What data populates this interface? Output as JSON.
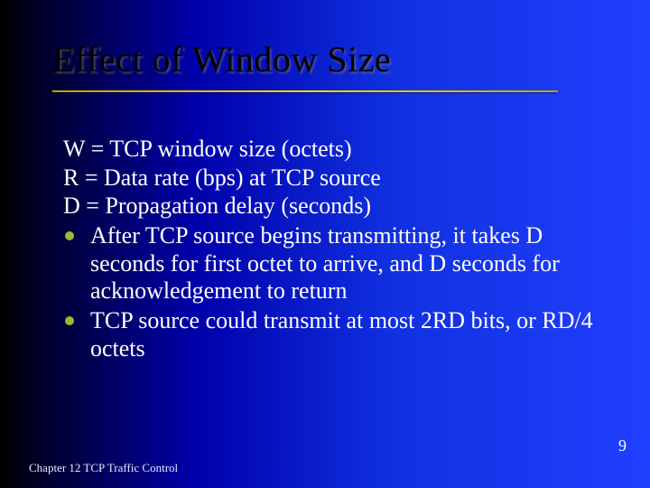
{
  "slide": {
    "title": "Effect of Window Size",
    "title_color": "#000000",
    "underline_color": "#ffd700",
    "background_gradient": [
      "#000000",
      "#000033",
      "#0000aa",
      "#1030e0",
      "#2040ff"
    ],
    "text_color": "#ffffff",
    "bullet_color": "#98b838",
    "font_family": "Times New Roman",
    "title_fontsize": 40,
    "body_fontsize": 26,
    "footer_fontsize": 13,
    "pagenum_fontsize": 18,
    "definitions": [
      "W = TCP window size (octets)",
      "R = Data rate (bps) at TCP source",
      "D = Propagation delay (seconds)"
    ],
    "bullets": [
      "After TCP source begins transmitting, it takes D seconds for first octet to arrive, and D seconds for acknowledgement to return",
      "TCP source could transmit at most 2RD bits, or RD/4 octets"
    ],
    "footer": "Chapter 12 TCP Traffic Control",
    "page_number": "9"
  }
}
